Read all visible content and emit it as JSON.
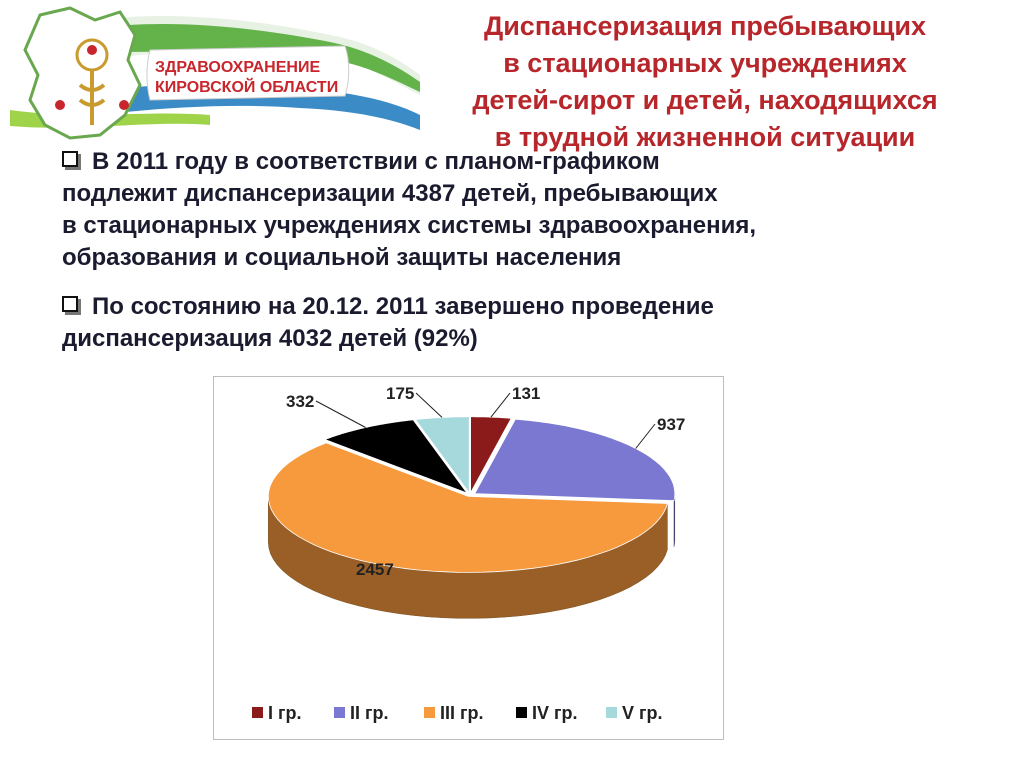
{
  "logo": {
    "line1": "ЗДРАВООХРАНЕНИЕ",
    "line2": "КИРОВСКОЙ ОБЛАСТИ"
  },
  "header": {
    "title_lines": [
      "Диспансеризация пребывающих",
      "в стационарных учреждениях",
      "детей-сирот и детей, находящихся",
      "в трудной жизненной ситуации"
    ]
  },
  "bullets": [
    {
      "lines": [
        "В 2011 году в соответствии с планом-графиком",
        "подлежит   диспансеризации   4387  детей, пребывающих",
        "в стационарных учреждениях системы здравоохранения,",
        "образования и социальной защиты населения"
      ]
    },
    {
      "lines": [
        "По состоянию на 20.12. 2011  завершено проведение",
        "диспансеризация   4032 детей (92%)"
      ]
    }
  ],
  "chart_data": {
    "type": "pie",
    "style": "3d-exploded",
    "categories": [
      "I гр.",
      "II гр.",
      "III гр.",
      "IV гр.",
      "V гр."
    ],
    "values": [
      131,
      937,
      2457,
      332,
      175
    ],
    "colors": [
      "#8b1a1a",
      "#7b78d2",
      "#f79a3e",
      "#000000",
      "#a6d9dc"
    ],
    "legend_position": "bottom"
  }
}
